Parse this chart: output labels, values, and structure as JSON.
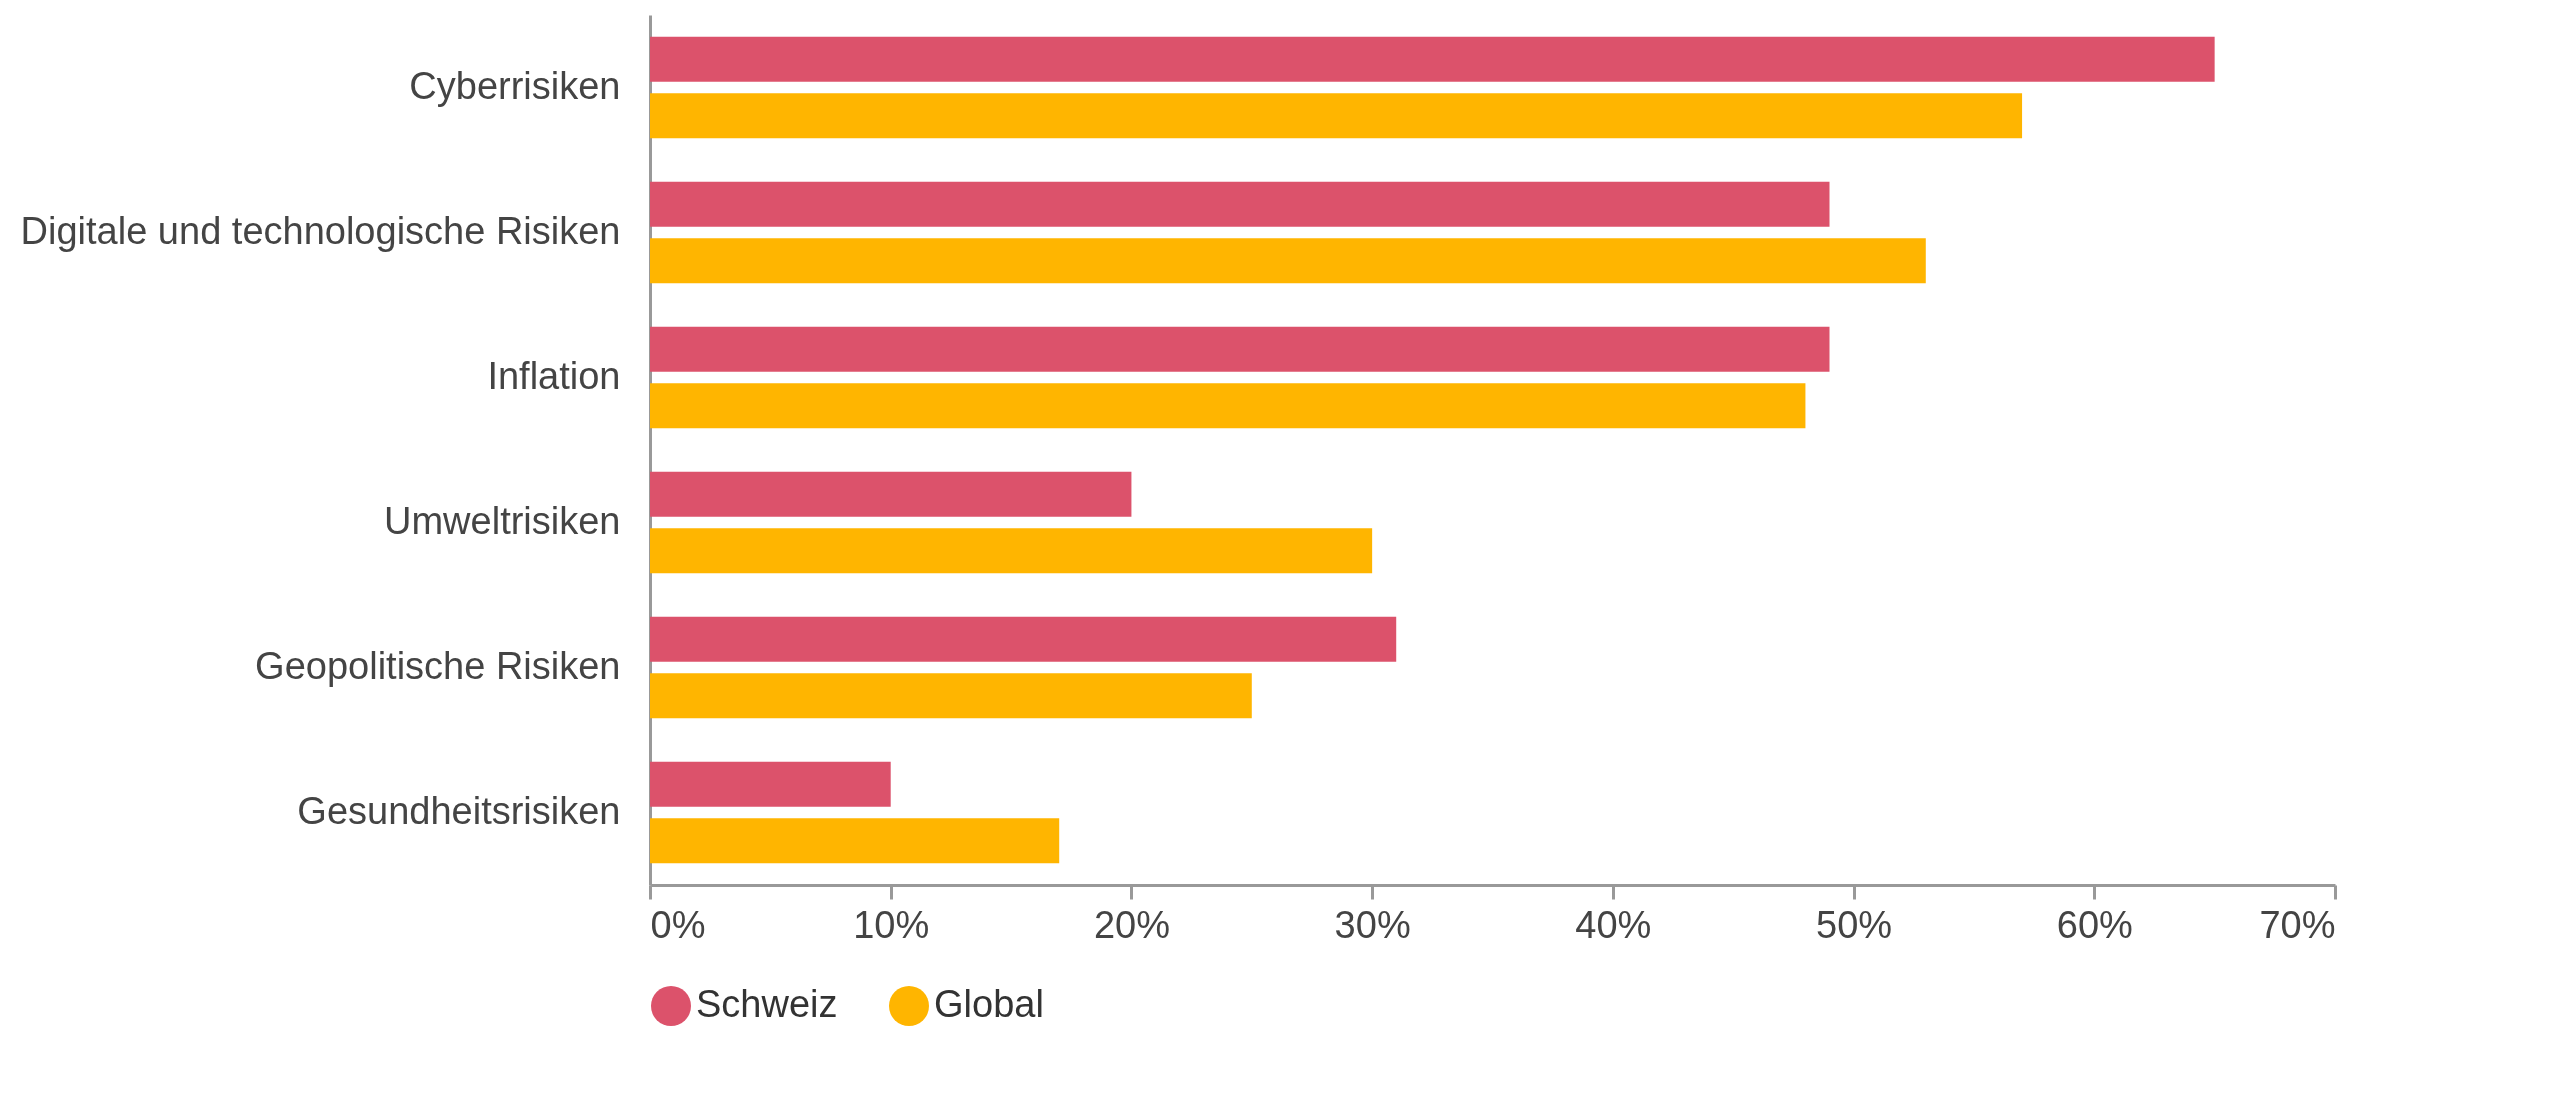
{
  "chart_data": {
    "type": "bar",
    "orientation": "horizontal",
    "categories": [
      "Cyberrisiken",
      "Digitale und technologische Risiken",
      "Inflation",
      "Umweltrisiken",
      "Geopolitische Risiken",
      "Gesundheitsrisiken"
    ],
    "series": [
      {
        "name": "Schweiz",
        "color": "#dc526b",
        "values": [
          65,
          49,
          49,
          20,
          31,
          10
        ]
      },
      {
        "name": "Global",
        "color": "#ffb500",
        "values": [
          57,
          53,
          48,
          30,
          25,
          17
        ]
      }
    ],
    "xlim": [
      0,
      70
    ],
    "xticks": [
      {
        "value": 0,
        "label": "0%"
      },
      {
        "value": 10,
        "label": "10%"
      },
      {
        "value": 20,
        "label": "20%"
      },
      {
        "value": 30,
        "label": "30%"
      },
      {
        "value": 40,
        "label": "40%"
      },
      {
        "value": 50,
        "label": "50%"
      },
      {
        "value": 60,
        "label": "60%"
      },
      {
        "value": 70,
        "label": "70%"
      }
    ],
    "grid": false,
    "legend": "bottom"
  }
}
